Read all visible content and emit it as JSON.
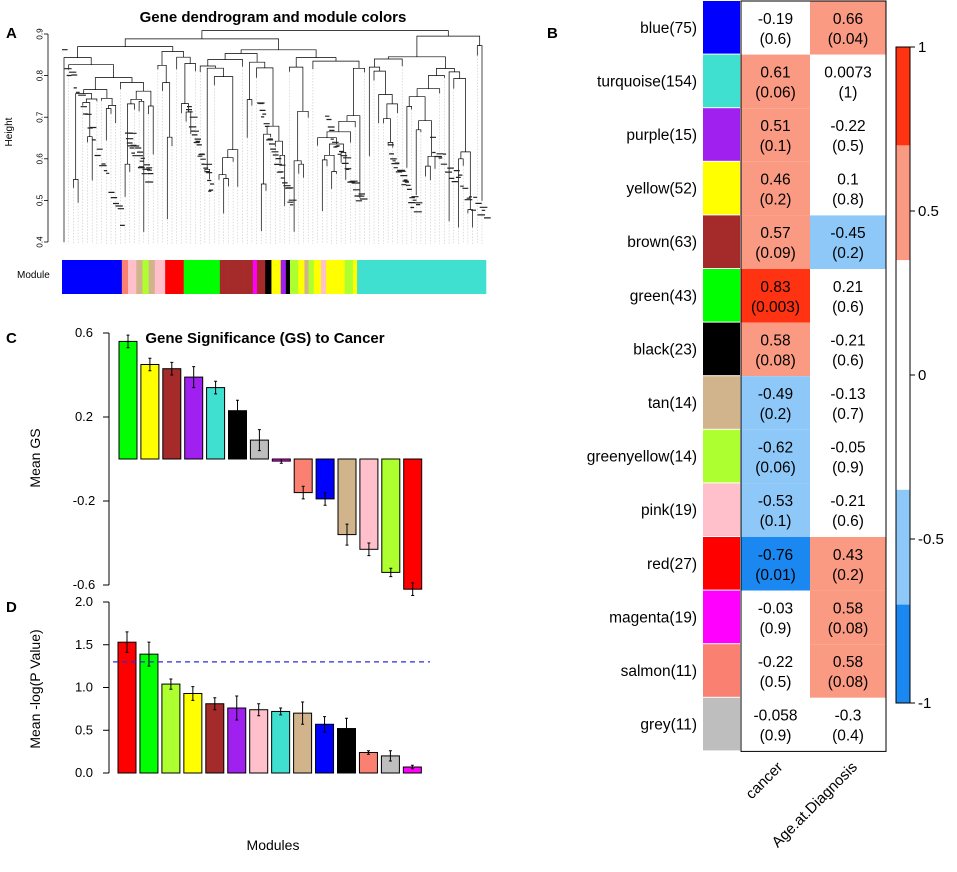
{
  "panel_labels": {
    "a": "A",
    "b": "B",
    "c": "C",
    "d": "D"
  },
  "colors": {
    "blue": "#0000ff",
    "turquoise": "#40e0d0",
    "purple": "#a020f0",
    "yellow": "#ffff00",
    "brown": "#a52a2a",
    "green": "#00ff00",
    "black": "#000000",
    "tan": "#d2b48c",
    "greenyellow": "#adff2f",
    "pink": "#ffc0cb",
    "red": "#ff0000",
    "magenta": "#ff00ff",
    "salmon": "#fa8072",
    "grey": "#bebebe",
    "dashed_line": "#2b2bd6"
  },
  "chart_data": [
    {
      "type": "dendrogram",
      "title": "Gene dendrogram and module colors",
      "ylabel": "Height",
      "ylim": [
        0.4,
        0.9
      ],
      "yticks": [
        "0.4",
        "0.5",
        "0.6",
        "0.7",
        "0.8",
        "0.9"
      ],
      "color_bar_label": "Module",
      "module_color_sequence": [
        "blue",
        "salmon",
        "pink",
        "tan",
        "greenyellow",
        "red",
        "green",
        "brown",
        "magenta",
        "black",
        "yellow",
        "purple",
        "greenyellow",
        "yellow",
        "turquoise"
      ]
    },
    {
      "type": "bar",
      "title": "Gene Significance (GS) to Cancer",
      "ylabel": "Mean GS",
      "ylim": [
        -0.65,
        0.65
      ],
      "yticks": [
        "0.6",
        "0.2",
        "-0.2",
        "-0.6"
      ],
      "categories": [
        "green",
        "yellow",
        "brown",
        "purple",
        "turquoise",
        "black",
        "grey",
        "magenta",
        "salmon",
        "blue",
        "tan",
        "pink",
        "greenyellow",
        "red"
      ],
      "values": [
        0.56,
        0.45,
        0.43,
        0.39,
        0.34,
        0.23,
        0.09,
        -0.01,
        -0.16,
        -0.19,
        -0.36,
        -0.43,
        -0.54,
        -0.62
      ],
      "errors": [
        0.03,
        0.03,
        0.03,
        0.05,
        0.03,
        0.05,
        0.05,
        0.01,
        0.03,
        0.03,
        0.05,
        0.03,
        0.02,
        0.03
      ]
    },
    {
      "type": "bar",
      "title": "",
      "ylabel": "Mean -log(P Value)",
      "xlabel": "Modules",
      "ylim": [
        0,
        2.0
      ],
      "yticks": [
        "0.0",
        "0.5",
        "1.0",
        "1.5",
        "2.0"
      ],
      "threshold": 1.3,
      "categories": [
        "red",
        "green",
        "greenyellow",
        "yellow",
        "brown",
        "purple",
        "pink",
        "turquoise",
        "tan",
        "blue",
        "black",
        "salmon",
        "grey",
        "magenta"
      ],
      "values": [
        1.53,
        1.39,
        1.04,
        0.93,
        0.81,
        0.76,
        0.74,
        0.72,
        0.7,
        0.57,
        0.52,
        0.24,
        0.2,
        0.07
      ],
      "errors": [
        0.12,
        0.14,
        0.06,
        0.08,
        0.07,
        0.14,
        0.07,
        0.04,
        0.13,
        0.09,
        0.12,
        0.02,
        0.06,
        0.02
      ]
    },
    {
      "type": "heatmap",
      "rows": [
        "blue(75)",
        "turquoise(154)",
        "purple(15)",
        "yellow(52)",
        "brown(63)",
        "green(43)",
        "black(23)",
        "tan(14)",
        "greenyellow(14)",
        "pink(19)",
        "red(27)",
        "magenta(19)",
        "salmon(11)",
        "grey(11)"
      ],
      "row_colors": [
        "blue",
        "turquoise",
        "purple",
        "yellow",
        "brown",
        "green",
        "black",
        "tan",
        "greenyellow",
        "pink",
        "red",
        "magenta",
        "salmon",
        "grey"
      ],
      "columns": [
        "cancer",
        "Age.at.Diagnosis"
      ],
      "correlations": [
        [
          "-0.19",
          "0.66"
        ],
        [
          "0.61",
          "0.0073"
        ],
        [
          "0.51",
          "-0.22"
        ],
        [
          "0.46",
          "0.1"
        ],
        [
          "0.57",
          "-0.45"
        ],
        [
          "0.83",
          "0.21"
        ],
        [
          "0.58",
          "-0.21"
        ],
        [
          "-0.49",
          "-0.13"
        ],
        [
          "-0.62",
          "-0.05"
        ],
        [
          "-0.53",
          "-0.21"
        ],
        [
          "-0.76",
          "0.43"
        ],
        [
          "-0.03",
          "0.58"
        ],
        [
          "-0.22",
          "0.58"
        ],
        [
          "-0.058",
          "-0.3"
        ]
      ],
      "pvalues": [
        [
          "(0.6)",
          "(0.04)"
        ],
        [
          "(0.06)",
          "(1)"
        ],
        [
          "(0.1)",
          "(0.5)"
        ],
        [
          "(0.2)",
          "(0.8)"
        ],
        [
          "(0.09)",
          "(0.2)"
        ],
        [
          "(0.003)",
          "(0.6)"
        ],
        [
          "(0.08)",
          "(0.6)"
        ],
        [
          "(0.2)",
          "(0.7)"
        ],
        [
          "(0.06)",
          "(0.9)"
        ],
        [
          "(0.1)",
          "(0.6)"
        ],
        [
          "(0.01)",
          "(0.2)"
        ],
        [
          "(0.9)",
          "(0.08)"
        ],
        [
          "(0.5)",
          "(0.08)"
        ],
        [
          "(0.9)",
          "(0.4)"
        ]
      ],
      "colorbar": {
        "range": [
          -1,
          1
        ],
        "ticks": [
          "1",
          "0.5",
          "0",
          "-0.5",
          "-1"
        ],
        "bins": [
          {
            "from": 0.7,
            "to": 1.0,
            "color": "#ff3311"
          },
          {
            "from": 0.35,
            "to": 0.7,
            "color": "#fa9a82"
          },
          {
            "from": -0.35,
            "to": 0.35,
            "color": "#ffffff"
          },
          {
            "from": -0.7,
            "to": -0.35,
            "color": "#8ec8f8"
          },
          {
            "from": -1.0,
            "to": -0.7,
            "color": "#1a88f0"
          }
        ]
      }
    }
  ]
}
